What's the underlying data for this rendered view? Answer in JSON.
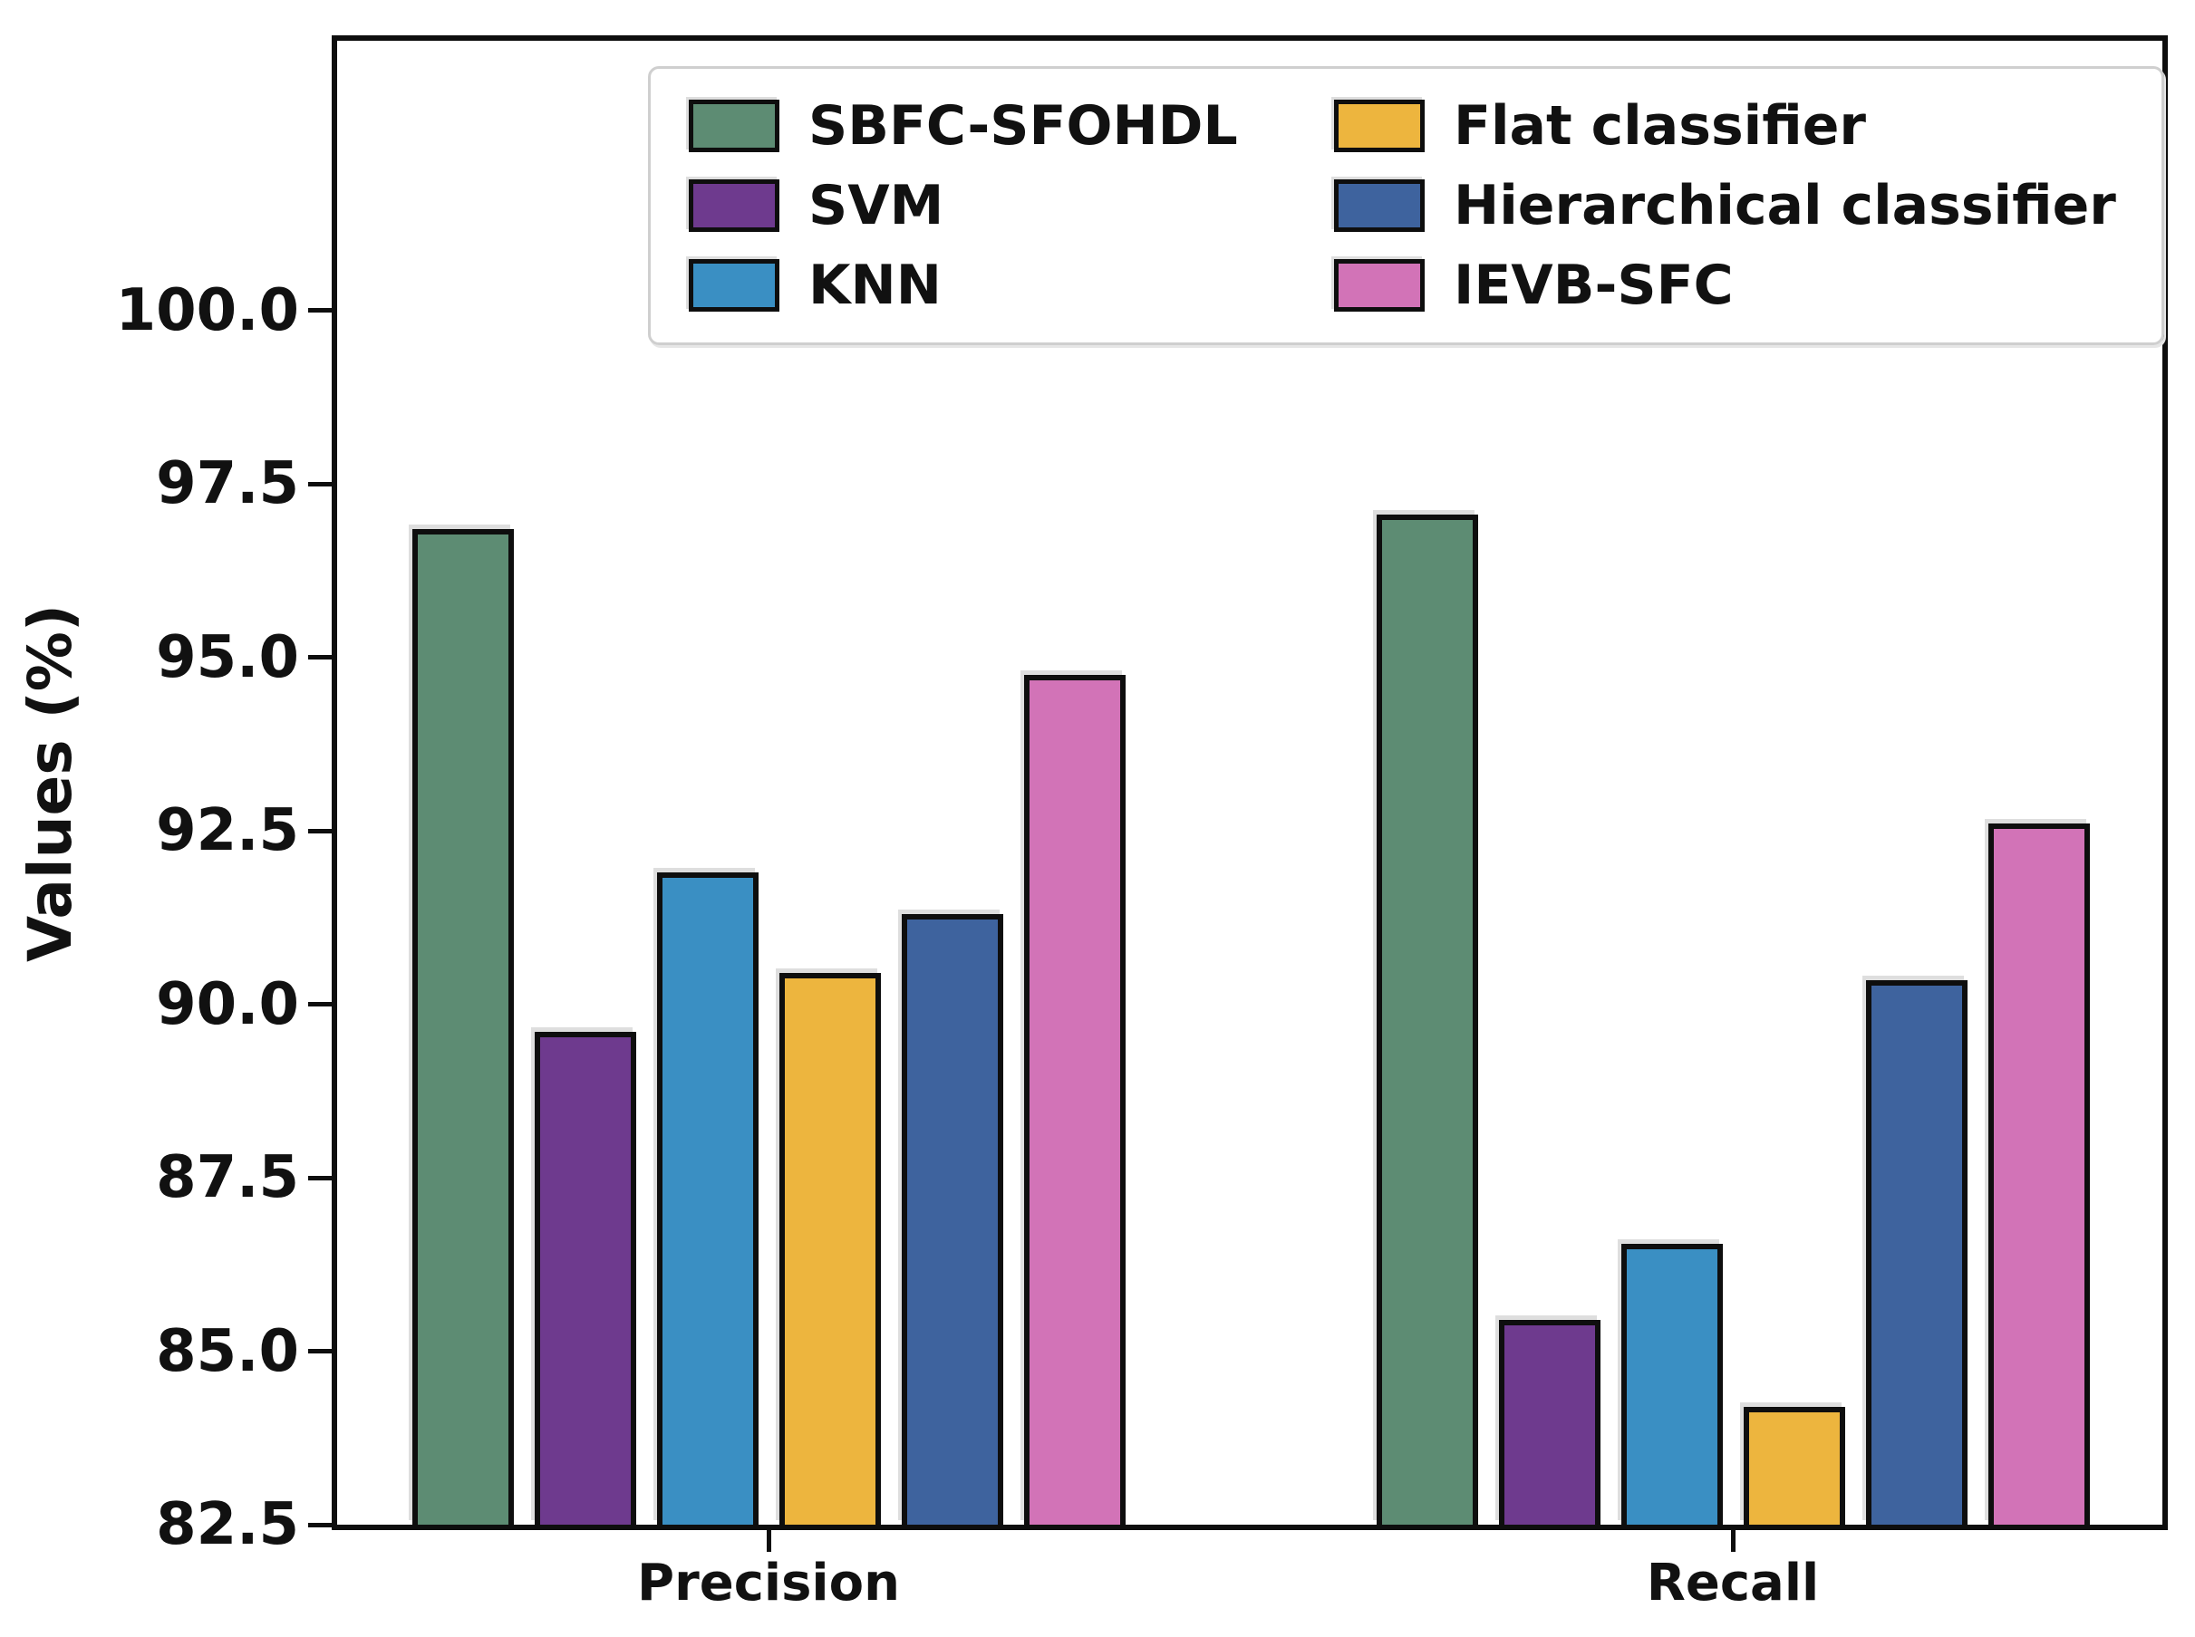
{
  "chart_data": {
    "type": "bar",
    "categories": [
      "Precision",
      "Recall"
    ],
    "series": [
      {
        "name": "SBFC-SFOHDL",
        "color": "#5d8c73",
        "values": [
          96.85,
          97.05
        ]
      },
      {
        "name": "SVM",
        "color": "#6e3a8e",
        "values": [
          89.6,
          85.45
        ]
      },
      {
        "name": "KNN",
        "color": "#3a8fc3",
        "values": [
          91.9,
          86.55
        ]
      },
      {
        "name": "Flat classifier",
        "color": "#edb53e",
        "values": [
          90.45,
          84.2
        ]
      },
      {
        "name": "Hierarchical classifier",
        "color": "#3e639e",
        "values": [
          91.3,
          90.35
        ]
      },
      {
        "name": "IEVB-SFC",
        "color": "#d273b7",
        "values": [
          94.75,
          92.6
        ]
      }
    ],
    "title": "",
    "xlabel": "",
    "ylabel": "Values (%)",
    "yticks": [
      82.5,
      85.0,
      87.5,
      90.0,
      92.5,
      95.0,
      97.5,
      100.0
    ],
    "ylim": [
      82.5,
      103.9
    ],
    "grid": false,
    "legend_position": "upper center",
    "legend_columns": 2,
    "bar_edge_color": "#0e0e0e"
  }
}
